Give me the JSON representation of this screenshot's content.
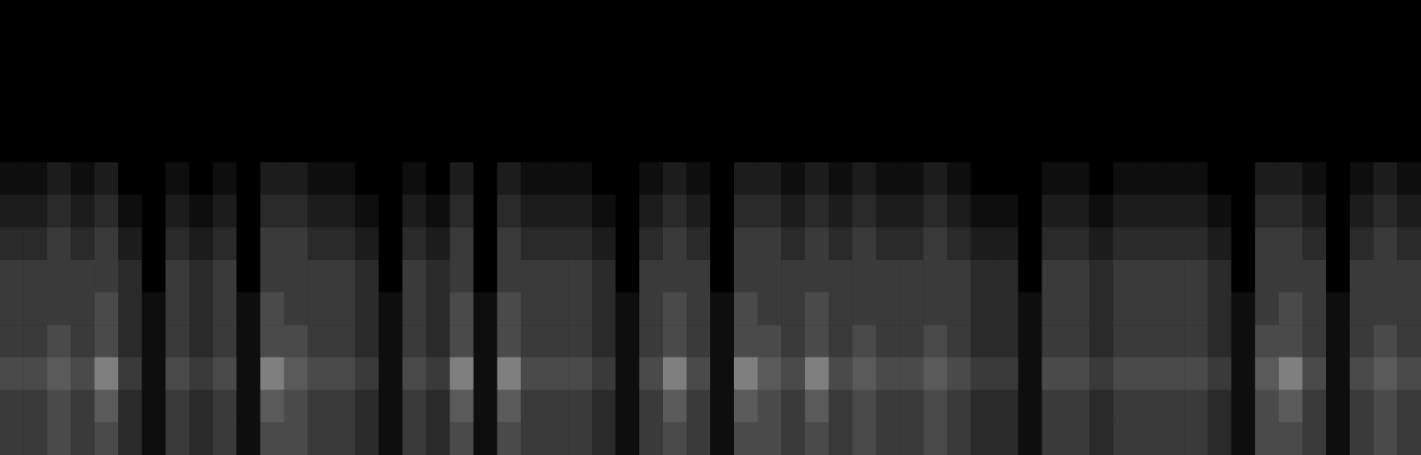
{
  "chart_data": {
    "type": "heatmap",
    "tick_labels": false,
    "color_range": [
      0,
      9
    ],
    "cells": [
      [
        0,
        0,
        0,
        0,
        0,
        0,
        0,
        0,
        0,
        0,
        0,
        0,
        0,
        0,
        0,
        0,
        0,
        0,
        0,
        0,
        0,
        0,
        0,
        0,
        0,
        0,
        0,
        0,
        0,
        0,
        0,
        0,
        0,
        0,
        0,
        0,
        0,
        0,
        0,
        0,
        0,
        0,
        0,
        0,
        0,
        0,
        0,
        0,
        0,
        0,
        0,
        0,
        0,
        0,
        0,
        0,
        0,
        0,
        0,
        0
      ],
      [
        0,
        0,
        0,
        0,
        0,
        0,
        0,
        0,
        0,
        0,
        0,
        0,
        0,
        0,
        0,
        0,
        0,
        0,
        0,
        0,
        0,
        0,
        0,
        0,
        0,
        0,
        0,
        0,
        0,
        0,
        0,
        0,
        0,
        0,
        0,
        0,
        0,
        0,
        0,
        0,
        0,
        0,
        0,
        0,
        0,
        0,
        0,
        0,
        0,
        0,
        0,
        0,
        0,
        0,
        0,
        0,
        0,
        0,
        0,
        0
      ],
      [
        0,
        0,
        0,
        0,
        0,
        0,
        0,
        0,
        0,
        0,
        0,
        0,
        0,
        0,
        0,
        0,
        0,
        0,
        0,
        0,
        0,
        0,
        0,
        0,
        0,
        0,
        0,
        0,
        0,
        0,
        0,
        0,
        0,
        0,
        0,
        0,
        0,
        0,
        0,
        0,
        0,
        0,
        0,
        0,
        0,
        0,
        0,
        0,
        0,
        0,
        0,
        0,
        0,
        0,
        0,
        0,
        0,
        0,
        0,
        0
      ],
      [
        0,
        0,
        0,
        0,
        0,
        0,
        0,
        0,
        0,
        0,
        0,
        0,
        0,
        0,
        0,
        0,
        0,
        0,
        0,
        0,
        0,
        0,
        0,
        0,
        0,
        0,
        0,
        0,
        0,
        0,
        0,
        0,
        0,
        0,
        0,
        0,
        0,
        0,
        0,
        0,
        0,
        0,
        0,
        0,
        0,
        0,
        0,
        0,
        0,
        0,
        0,
        0,
        0,
        0,
        0,
        0,
        0,
        0,
        0,
        0
      ],
      [
        0,
        0,
        0,
        0,
        0,
        0,
        0,
        0,
        0,
        0,
        0,
        0,
        0,
        0,
        0,
        0,
        0,
        0,
        0,
        0,
        0,
        0,
        0,
        0,
        0,
        0,
        0,
        0,
        0,
        0,
        0,
        0,
        0,
        0,
        0,
        0,
        0,
        0,
        0,
        0,
        0,
        0,
        0,
        0,
        0,
        0,
        0,
        0,
        0,
        0,
        0,
        0,
        0,
        0,
        0,
        0,
        0,
        0,
        0,
        0
      ],
      [
        1,
        1,
        2,
        1,
        2,
        0,
        0,
        1,
        0,
        1,
        0,
        2,
        2,
        1,
        1,
        0,
        0,
        1,
        0,
        2,
        0,
        2,
        1,
        1,
        1,
        0,
        0,
        1,
        2,
        1,
        0,
        2,
        2,
        1,
        2,
        1,
        2,
        1,
        1,
        2,
        1,
        0,
        0,
        0,
        1,
        1,
        0,
        1,
        1,
        1,
        1,
        0,
        0,
        2,
        2,
        1,
        0,
        1,
        2,
        1
      ],
      [
        2,
        2,
        3,
        2,
        3,
        1,
        0,
        2,
        1,
        2,
        0,
        3,
        3,
        2,
        2,
        1,
        0,
        2,
        1,
        3,
        0,
        3,
        2,
        2,
        2,
        1,
        0,
        2,
        3,
        2,
        0,
        3,
        3,
        2,
        3,
        2,
        3,
        2,
        2,
        3,
        2,
        1,
        1,
        0,
        2,
        2,
        1,
        2,
        2,
        2,
        2,
        1,
        0,
        3,
        3,
        2,
        0,
        2,
        3,
        2
      ],
      [
        3,
        3,
        4,
        3,
        4,
        2,
        0,
        3,
        2,
        3,
        0,
        4,
        4,
        3,
        3,
        2,
        0,
        3,
        2,
        4,
        0,
        4,
        3,
        3,
        3,
        2,
        0,
        3,
        4,
        3,
        0,
        4,
        4,
        3,
        4,
        3,
        4,
        3,
        3,
        4,
        3,
        2,
        2,
        0,
        3,
        3,
        2,
        3,
        3,
        3,
        3,
        2,
        0,
        4,
        4,
        3,
        0,
        3,
        4,
        3
      ],
      [
        4,
        4,
        4,
        4,
        4,
        3,
        0,
        4,
        3,
        4,
        0,
        4,
        4,
        4,
        4,
        3,
        0,
        4,
        3,
        4,
        0,
        4,
        4,
        4,
        4,
        3,
        0,
        4,
        4,
        4,
        0,
        4,
        4,
        4,
        4,
        4,
        4,
        4,
        4,
        4,
        4,
        3,
        3,
        0,
        4,
        4,
        3,
        4,
        4,
        4,
        4,
        3,
        0,
        4,
        4,
        4,
        0,
        4,
        4,
        4
      ],
      [
        4,
        4,
        4,
        4,
        5,
        3,
        1,
        4,
        3,
        4,
        1,
        5,
        4,
        4,
        4,
        3,
        1,
        4,
        3,
        5,
        1,
        5,
        4,
        4,
        4,
        3,
        1,
        4,
        5,
        4,
        1,
        5,
        4,
        4,
        5,
        4,
        4,
        4,
        4,
        4,
        4,
        3,
        3,
        1,
        4,
        4,
        3,
        4,
        4,
        4,
        4,
        3,
        1,
        4,
        5,
        4,
        1,
        4,
        4,
        4
      ],
      [
        4,
        4,
        5,
        4,
        5,
        3,
        1,
        4,
        3,
        4,
        1,
        5,
        5,
        4,
        4,
        3,
        1,
        4,
        3,
        5,
        1,
        5,
        4,
        4,
        4,
        3,
        1,
        4,
        5,
        4,
        1,
        5,
        5,
        4,
        5,
        4,
        5,
        4,
        4,
        5,
        4,
        3,
        3,
        1,
        4,
        4,
        3,
        4,
        4,
        4,
        4,
        3,
        1,
        5,
        5,
        4,
        1,
        4,
        5,
        4
      ],
      [
        5,
        5,
        6,
        5,
        7,
        4,
        1,
        5,
        4,
        5,
        1,
        7,
        6,
        5,
        5,
        4,
        1,
        5,
        4,
        7,
        1,
        7,
        5,
        5,
        5,
        4,
        1,
        5,
        7,
        5,
        1,
        7,
        6,
        5,
        7,
        5,
        6,
        5,
        5,
        6,
        5,
        4,
        4,
        1,
        5,
        5,
        4,
        5,
        5,
        5,
        5,
        4,
        1,
        6,
        7,
        5,
        1,
        5,
        6,
        5
      ],
      [
        4,
        4,
        5,
        4,
        6,
        3,
        1,
        4,
        3,
        4,
        1,
        6,
        5,
        4,
        4,
        3,
        1,
        4,
        3,
        6,
        1,
        6,
        4,
        4,
        4,
        3,
        1,
        4,
        6,
        4,
        1,
        6,
        5,
        4,
        6,
        4,
        5,
        4,
        4,
        5,
        4,
        3,
        3,
        1,
        4,
        4,
        3,
        4,
        4,
        4,
        4,
        3,
        1,
        5,
        6,
        4,
        1,
        4,
        5,
        4
      ],
      [
        4,
        4,
        5,
        4,
        5,
        3,
        1,
        4,
        3,
        4,
        1,
        5,
        5,
        4,
        4,
        3,
        1,
        4,
        3,
        5,
        1,
        5,
        4,
        4,
        4,
        3,
        1,
        4,
        5,
        4,
        1,
        5,
        5,
        4,
        5,
        4,
        5,
        4,
        4,
        5,
        4,
        3,
        3,
        1,
        4,
        4,
        3,
        4,
        4,
        4,
        4,
        3,
        1,
        5,
        5,
        4,
        1,
        4,
        5,
        4
      ]
    ]
  }
}
